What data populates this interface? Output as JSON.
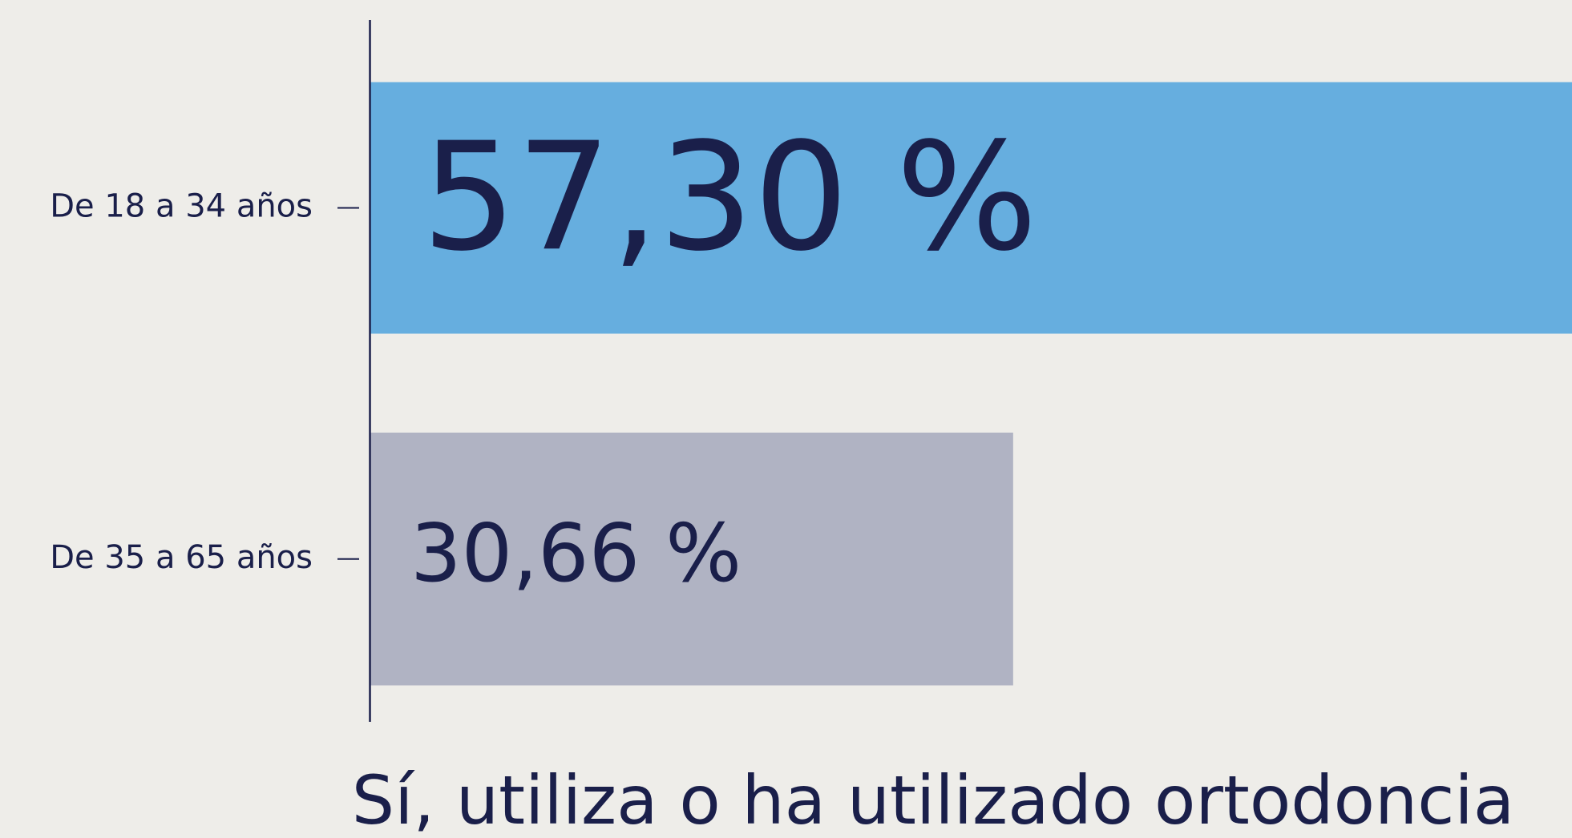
{
  "chart_data": {
    "type": "barh",
    "xlabel": "Sí, utiliza o ha utilizado ortodoncia",
    "categories": [
      "De 18 a 34 años",
      "De 35 a 65 años"
    ],
    "values": [
      57.3,
      30.66
    ],
    "value_labels": [
      "57,30 %",
      "30,66 %"
    ],
    "colors": [
      "#66aedf",
      "#b0b3c3"
    ],
    "xlim": [
      0,
      57.3
    ]
  }
}
